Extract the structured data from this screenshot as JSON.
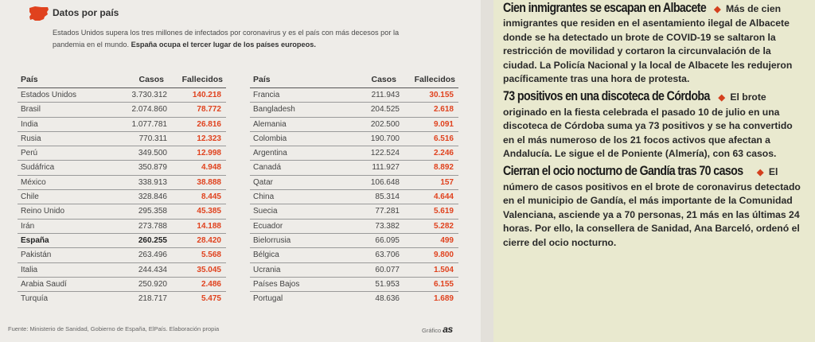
{
  "section": {
    "title": "Datos por país",
    "intro_plain": "Estados Unidos supera los tres millones de infectados por coronavirus y es el país con más decesos por la pandemia en el mundo.",
    "intro_bold": "España ocupa el tercer lugar de los países europeos."
  },
  "table": {
    "headers": {
      "country": "País",
      "cases": "Casos",
      "deaths": "Fallecidos"
    },
    "left_rows": [
      {
        "country": "Estados Unidos",
        "cases": "3.730.312",
        "deaths": "140.218"
      },
      {
        "country": "Brasil",
        "cases": "2.074.860",
        "deaths": "78.772"
      },
      {
        "country": "India",
        "cases": "1.077.781",
        "deaths": "26.816"
      },
      {
        "country": "Rusia",
        "cases": "770.311",
        "deaths": "12.323"
      },
      {
        "country": "Perú",
        "cases": "349.500",
        "deaths": "12.998"
      },
      {
        "country": "Sudáfrica",
        "cases": "350.879",
        "deaths": "4.948"
      },
      {
        "country": "México",
        "cases": "338.913",
        "deaths": "38.888"
      },
      {
        "country": "Chile",
        "cases": "328.846",
        "deaths": "8.445"
      },
      {
        "country": "Reino Unido",
        "cases": "295.358",
        "deaths": "45.385"
      },
      {
        "country": "Irán",
        "cases": "273.788",
        "deaths": "14.188"
      },
      {
        "country": "España",
        "cases": "260.255",
        "deaths": "28.420",
        "bold": true
      },
      {
        "country": "Pakistán",
        "cases": "263.496",
        "deaths": "5.568"
      },
      {
        "country": "Italia",
        "cases": "244.434",
        "deaths": "35.045"
      },
      {
        "country": "Arabia Saudí",
        "cases": "250.920",
        "deaths": "2.486"
      },
      {
        "country": "Turquía",
        "cases": "218.717",
        "deaths": "5.475"
      }
    ],
    "right_rows": [
      {
        "country": "Francia",
        "cases": "211.943",
        "deaths": "30.155"
      },
      {
        "country": "Bangladesh",
        "cases": "204.525",
        "deaths": "2.618"
      },
      {
        "country": "Alemania",
        "cases": "202.500",
        "deaths": "9.091"
      },
      {
        "country": "Colombia",
        "cases": "190.700",
        "deaths": "6.516"
      },
      {
        "country": "Argentina",
        "cases": "122.524",
        "deaths": "2.246"
      },
      {
        "country": "Canadá",
        "cases": "111.927",
        "deaths": "8.892"
      },
      {
        "country": "Qatar",
        "cases": "106.648",
        "deaths": "157"
      },
      {
        "country": "China",
        "cases": "85.314",
        "deaths": "4.644"
      },
      {
        "country": "Suecia",
        "cases": "77.281",
        "deaths": "5.619"
      },
      {
        "country": "Ecuador",
        "cases": "73.382",
        "deaths": "5.282"
      },
      {
        "country": "Bielorrusia",
        "cases": "66.095",
        "deaths": "499"
      },
      {
        "country": "Bélgica",
        "cases": "63.706",
        "deaths": "9.800"
      },
      {
        "country": "Ucrania",
        "cases": "60.077",
        "deaths": "1.504"
      },
      {
        "country": "Países Bajos",
        "cases": "51.953",
        "deaths": "6.155"
      },
      {
        "country": "Portugal",
        "cases": "48.636",
        "deaths": "1.689"
      }
    ]
  },
  "source": "Fuente: Ministerio de Sanidad, Gobierno de España, ElPaís. Elaboración propia",
  "credit": {
    "label": "Gráfico",
    "brand": "as"
  },
  "news": [
    {
      "headline": "Cien inmigrantes se escapan en Albacete",
      "body": "Más de cien inmigrantes que residen en el asentamiento ilegal de Albacete donde se ha detectado un brote de COVID-19 se saltaron la restricción de movilidad y cortaron la circunvalación de la ciudad. La Policía Nacional y la local de Albacete les redujeron pacíficamente tras una hora de protesta."
    },
    {
      "headline": "73 positivos en una discoteca de Córdoba",
      "body": "El brote originado en la fiesta celebrada el pasado 10 de julio en una discoteca de Córdoba suma ya 73 positivos y se ha convertido en el más numeroso de los 21 focos activos que afectan a Andalucía. Le sigue el de Poniente (Almería), con 63 casos."
    },
    {
      "headline": "Cierran el ocio nocturno de Gandía tras 70 casos",
      "body": "El número de casos positivos en el brote de coronavirus detectado en el municipio de Gandía, el más importante de la Comunidad Valenciana, asciende ya a 70 personas, 21 más en las últimas 24 horas. Por ello, la consellera de Sanidad, Ana Barceló, ordenó el cierre del ocio nocturno."
    }
  ],
  "colors": {
    "accent": "#e0421e",
    "panel_right": "#e9e9cf",
    "panel_left": "#eeece8"
  },
  "icons": {
    "map": "spain-map-icon",
    "bullet": "diamond-bullet-icon"
  }
}
